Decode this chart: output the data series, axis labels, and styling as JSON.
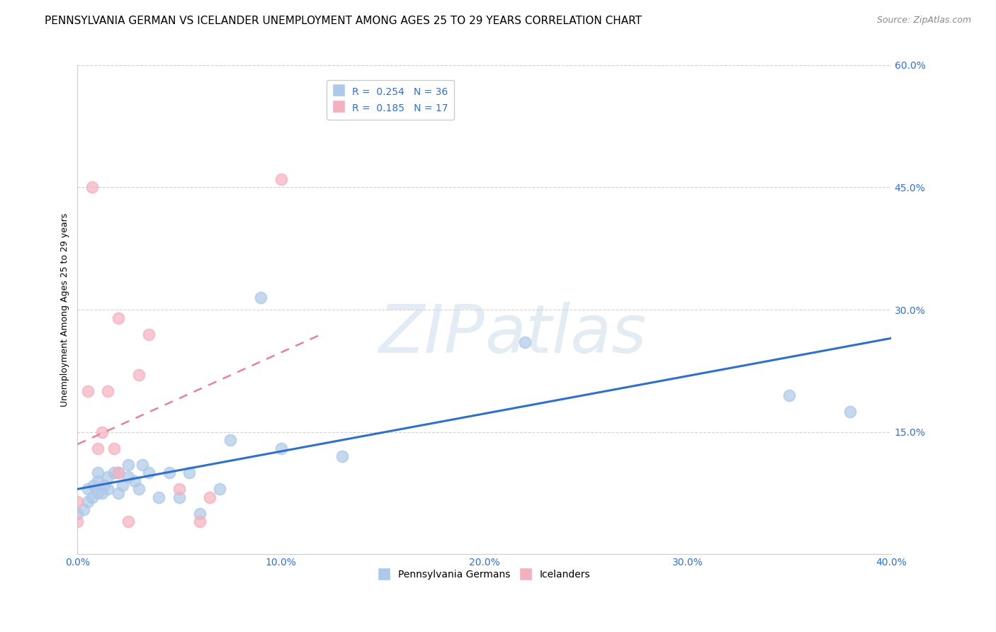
{
  "title": "PENNSYLVANIA GERMAN VS ICELANDER UNEMPLOYMENT AMONG AGES 25 TO 29 YEARS CORRELATION CHART",
  "source": "Source: ZipAtlas.com",
  "xlabel_pennsylvania": "Pennsylvania Germans",
  "xlabel_icelander": "Icelanders",
  "ylabel": "Unemployment Among Ages 25 to 29 years",
  "xlim": [
    0.0,
    0.4
  ],
  "ylim": [
    0.0,
    0.6
  ],
  "xticks": [
    0.0,
    0.1,
    0.2,
    0.3,
    0.4
  ],
  "yticks": [
    0.0,
    0.15,
    0.3,
    0.45,
    0.6
  ],
  "xtick_labels": [
    "0.0%",
    "10.0%",
    "20.0%",
    "30.0%",
    "40.0%"
  ],
  "ytick_labels": [
    "",
    "15.0%",
    "30.0%",
    "45.0%",
    "60.0%"
  ],
  "blue_R": 0.254,
  "blue_N": 36,
  "pink_R": 0.185,
  "pink_N": 17,
  "blue_color": "#adc8e8",
  "pink_color": "#f5b0c0",
  "blue_line_color": "#3070c8",
  "pink_line_color": "#e88098",
  "watermark_zip": "ZIP",
  "watermark_atlas": "atlas",
  "blue_points_x": [
    0.0,
    0.003,
    0.005,
    0.005,
    0.007,
    0.008,
    0.01,
    0.01,
    0.01,
    0.012,
    0.013,
    0.015,
    0.015,
    0.018,
    0.02,
    0.02,
    0.022,
    0.025,
    0.025,
    0.028,
    0.03,
    0.032,
    0.035,
    0.04,
    0.045,
    0.05,
    0.055,
    0.06,
    0.07,
    0.075,
    0.09,
    0.1,
    0.13,
    0.22,
    0.35,
    0.38
  ],
  "blue_points_y": [
    0.05,
    0.055,
    0.065,
    0.08,
    0.07,
    0.085,
    0.075,
    0.09,
    0.1,
    0.075,
    0.085,
    0.08,
    0.095,
    0.1,
    0.075,
    0.1,
    0.085,
    0.095,
    0.11,
    0.09,
    0.08,
    0.11,
    0.1,
    0.07,
    0.1,
    0.07,
    0.1,
    0.05,
    0.08,
    0.14,
    0.315,
    0.13,
    0.12,
    0.26,
    0.195,
    0.175
  ],
  "pink_points_x": [
    0.0,
    0.0,
    0.005,
    0.007,
    0.01,
    0.012,
    0.015,
    0.018,
    0.02,
    0.02,
    0.025,
    0.03,
    0.035,
    0.05,
    0.06,
    0.065,
    0.1
  ],
  "pink_points_y": [
    0.04,
    0.065,
    0.2,
    0.45,
    0.13,
    0.15,
    0.2,
    0.13,
    0.1,
    0.29,
    0.04,
    0.22,
    0.27,
    0.08,
    0.04,
    0.07,
    0.46
  ],
  "blue_trend_x": [
    0.0,
    0.4
  ],
  "blue_trend_y": [
    0.08,
    0.265
  ],
  "pink_trend_x": [
    0.0,
    0.12
  ],
  "pink_trend_y": [
    0.135,
    0.27
  ],
  "marker_size": 130,
  "title_fontsize": 11,
  "source_fontsize": 9,
  "axis_label_fontsize": 9,
  "tick_fontsize": 10,
  "legend_fontsize": 10
}
